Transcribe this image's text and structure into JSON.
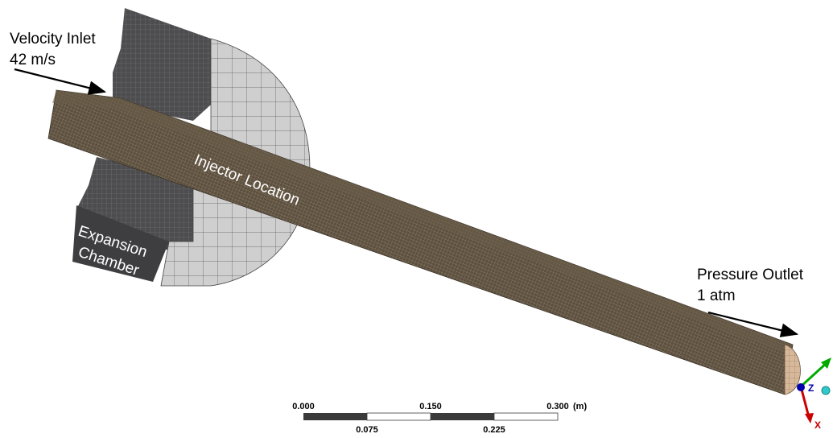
{
  "annotations": {
    "velocity_inlet": {
      "line1": "Velocity Inlet",
      "line2": "42 m/s"
    },
    "pressure_outlet": {
      "line1": "Pressure Outlet",
      "line2": "1 atm"
    },
    "injector": "Injector Location",
    "expansion": {
      "line1": "Expansion",
      "line2": "Chamber"
    }
  },
  "scale_bar": {
    "top_labels": [
      "0.000",
      "0.150",
      "0.300"
    ],
    "unit": "(m)",
    "bottom_labels": [
      "0.075",
      "0.225"
    ]
  },
  "triad": {
    "z_label": "Z",
    "x_label": "X"
  },
  "colors": {
    "mesh_tube": "#5c5040",
    "mesh_tube_edge": "#bba78a",
    "chamber_dark": "#4d4d4f",
    "chamber_light": "#cfcfcf",
    "outlet_face": "#d8b89a",
    "axis_x": "#cc0000",
    "axis_y": "#00aa00",
    "axis_z": "#0000aa"
  }
}
